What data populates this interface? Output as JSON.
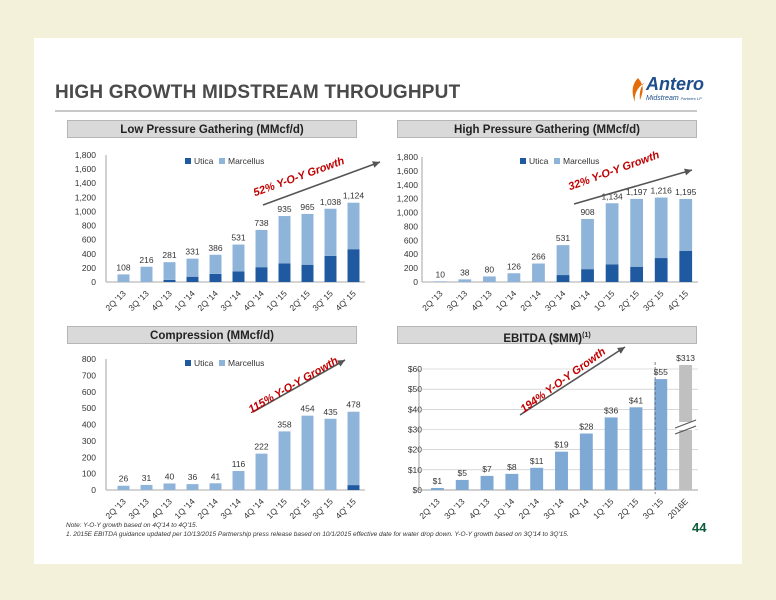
{
  "title": "HIGH GROWTH MIDSTREAM THROUGHPUT",
  "logo": {
    "name": "Antero",
    "sub": "Midstream",
    "sub_small": "Partners LP",
    "icon": "antero-logo-icon"
  },
  "colors": {
    "utica": "#1f5aa0",
    "marcellus": "#8fb4d9",
    "ebitda": "#7ea9d4",
    "estimate": "#c0c0c0",
    "arrow": "#555555",
    "growth_text": "#c00000"
  },
  "footnote_1": "Note: Y-O-Y growth based on 4Q'14 to 4Q'15.",
  "footnote_2": "1. 2015E EBITDA guidance updated per 10/13/2015 Partnership press release based on 10/1/2015 effective date for water drop down.  Y-O-Y growth based on 3Q'14 to 3Q'15.",
  "page_number": "44",
  "chart_data": [
    {
      "id": "low-pressure",
      "type": "bar",
      "stacked": true,
      "title": "Low Pressure Gathering (MMcf/d)",
      "categories": [
        "2Q '13",
        "3Q '13",
        "4Q '13",
        "1Q '14",
        "2Q '14",
        "3Q '14",
        "4Q '14",
        "1Q '15",
        "2Q' 15",
        "3Q' 15",
        "4Q' 15"
      ],
      "series": [
        {
          "name": "Utica",
          "values": [
            0,
            0,
            30,
            75,
            115,
            150,
            210,
            265,
            245,
            370,
            465
          ]
        },
        {
          "name": "Marcellus",
          "values": [
            108,
            216,
            251,
            256,
            271,
            381,
            528,
            670,
            720,
            668,
            659
          ]
        }
      ],
      "totals": [
        "108",
        "216",
        "281",
        "331",
        "386",
        "531",
        "738",
        "935",
        "965",
        "1,038",
        "1,124"
      ],
      "ylim": [
        0,
        1800
      ],
      "yticks": [
        "0",
        "200",
        "400",
        "600",
        "800",
        "1,000",
        "1,200",
        "1,400",
        "1,600",
        "1,800"
      ],
      "legend_position": "top",
      "growth": "52% Y-O-Y Growth"
    },
    {
      "id": "high-pressure",
      "type": "bar",
      "stacked": true,
      "title": "High Pressure Gathering (MMcf/d)",
      "categories": [
        "2Q '13",
        "3Q '13",
        "4Q '13",
        "1Q '14",
        "2Q '14",
        "3Q '14",
        "4Q '14",
        "1Q '15",
        "2Q' 15",
        "3Q' 15",
        "4Q' 15"
      ],
      "series": [
        {
          "name": "Utica",
          "values": [
            0,
            0,
            0,
            0,
            0,
            100,
            185,
            255,
            220,
            345,
            450
          ]
        },
        {
          "name": "Marcellus",
          "values": [
            10,
            38,
            80,
            126,
            266,
            431,
            723,
            879,
            977,
            871,
            745
          ]
        }
      ],
      "totals": [
        "10",
        "38",
        "80",
        "126",
        "266",
        "531",
        "908",
        "1,134",
        "1,197",
        "1,216",
        "1,195"
      ],
      "ylim": [
        0,
        1800
      ],
      "yticks": [
        "0",
        "200",
        "400",
        "600",
        "800",
        "1,000",
        "1,200",
        "1,400",
        "1,600",
        "1,800"
      ],
      "legend_position": "top",
      "growth": "32% Y-O-Y Growth"
    },
    {
      "id": "compression",
      "type": "bar",
      "stacked": true,
      "title": "Compression (MMcf/d)",
      "categories": [
        "2Q '13",
        "3Q '13",
        "4Q '13",
        "1Q '14",
        "2Q '14",
        "3Q '14",
        "4Q '14",
        "1Q '15",
        "2Q' 15",
        "3Q' 15",
        "4Q' 15"
      ],
      "series": [
        {
          "name": "Utica",
          "values": [
            0,
            0,
            0,
            0,
            0,
            0,
            0,
            0,
            0,
            0,
            30
          ]
        },
        {
          "name": "Marcellus",
          "values": [
            26,
            31,
            40,
            36,
            41,
            116,
            222,
            358,
            454,
            435,
            448
          ]
        }
      ],
      "totals": [
        "26",
        "31",
        "40",
        "36",
        "41",
        "116",
        "222",
        "358",
        "454",
        "435",
        "478"
      ],
      "ylim": [
        0,
        800
      ],
      "yticks": [
        "0",
        "100",
        "200",
        "300",
        "400",
        "500",
        "600",
        "700",
        "800"
      ],
      "legend_position": "top",
      "growth": "115% Y-O-Y Growth"
    },
    {
      "id": "ebitda",
      "type": "bar",
      "title": "EBITDA ($MM)",
      "title_sup": "(1)",
      "categories": [
        "2Q '13",
        "3Q '13",
        "4Q '13",
        "1Q '14",
        "2Q '14",
        "3Q '14",
        "4Q '14",
        "1Q '15",
        "2Q '15",
        "3Q '15",
        "2016E"
      ],
      "values": [
        1,
        5,
        7,
        8,
        11,
        19,
        28,
        36,
        41,
        55,
        313
      ],
      "labels": [
        "$1",
        "$5",
        "$7",
        "$8",
        "$11",
        "$19",
        "$28",
        "$36",
        "$41",
        "$55",
        "$313"
      ],
      "ylim": [
        0,
        60
      ],
      "yticks": [
        "$0",
        "$10",
        "$20",
        "$30",
        "$40",
        "$50",
        "$60"
      ],
      "axis_break": true,
      "growth": "194% Y-O-Y Growth"
    }
  ]
}
